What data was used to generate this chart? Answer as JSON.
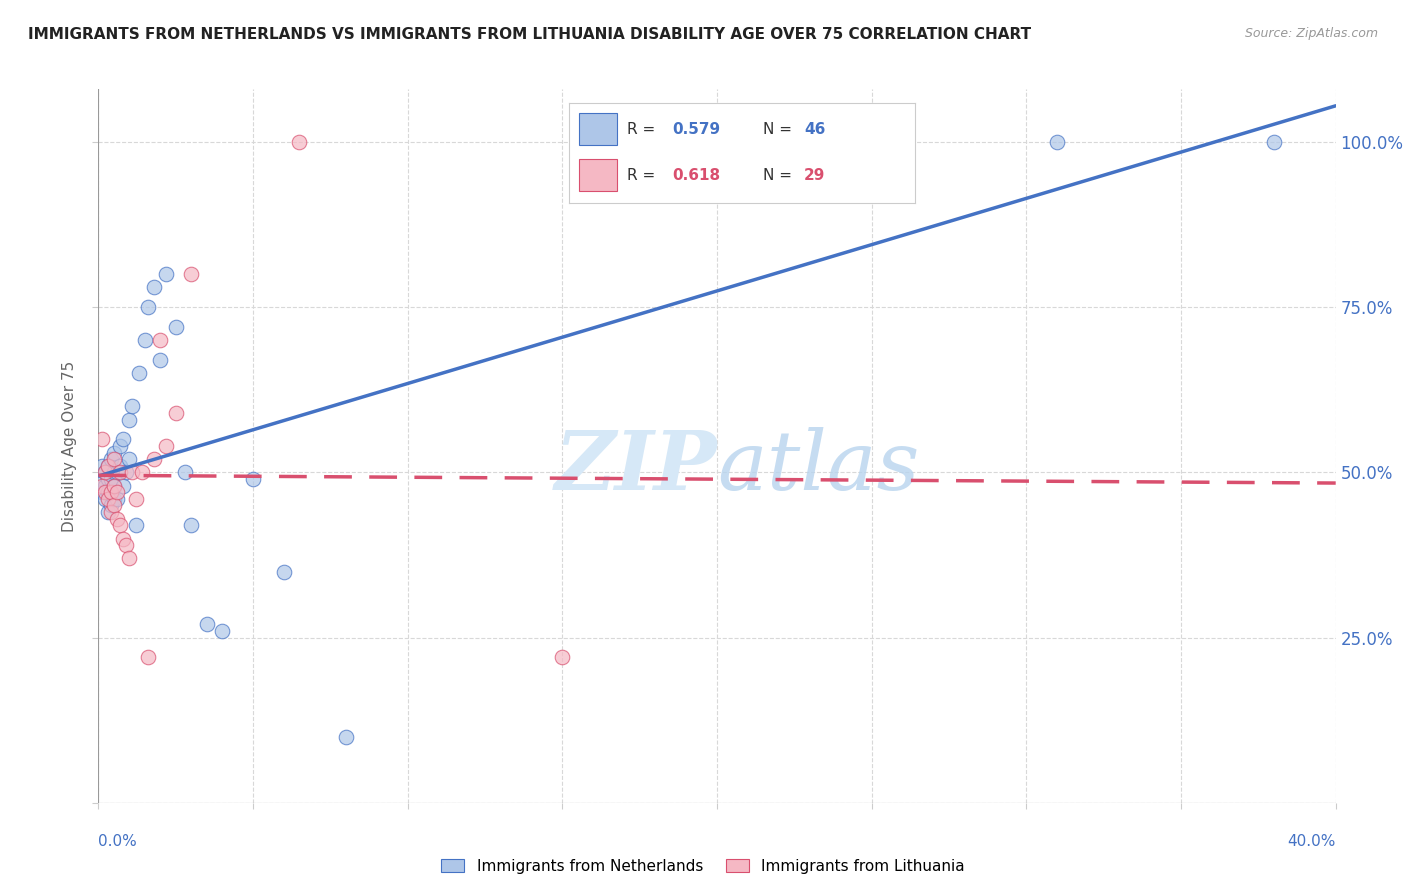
{
  "title": "IMMIGRANTS FROM NETHERLANDS VS IMMIGRANTS FROM LITHUANIA DISABILITY AGE OVER 75 CORRELATION CHART",
  "source": "Source: ZipAtlas.com",
  "ylabel": "Disability Age Over 75",
  "xlim": [
    0.0,
    0.4
  ],
  "ylim": [
    0.0,
    1.08
  ],
  "netherlands_R": 0.579,
  "netherlands_N": 46,
  "lithuania_R": 0.618,
  "lithuania_N": 29,
  "netherlands_color": "#aec6e8",
  "lithuania_color": "#f5b8c4",
  "netherlands_line_color": "#4472c4",
  "lithuania_line_color": "#d94f6e",
  "watermark_color": "#d6e8f7",
  "y_ticks": [
    0.0,
    0.25,
    0.5,
    0.75,
    1.0
  ],
  "y_labels": [
    "",
    "25.0%",
    "50.0%",
    "75.0%",
    "100.0%"
  ],
  "netherlands_x": [
    0.001,
    0.001,
    0.001,
    0.002,
    0.002,
    0.002,
    0.003,
    0.003,
    0.003,
    0.003,
    0.004,
    0.004,
    0.004,
    0.004,
    0.005,
    0.005,
    0.005,
    0.005,
    0.006,
    0.006,
    0.007,
    0.007,
    0.008,
    0.008,
    0.009,
    0.01,
    0.01,
    0.011,
    0.012,
    0.013,
    0.015,
    0.016,
    0.018,
    0.02,
    0.022,
    0.025,
    0.028,
    0.03,
    0.035,
    0.04,
    0.05,
    0.06,
    0.08,
    0.2,
    0.31,
    0.38
  ],
  "netherlands_y": [
    0.47,
    0.49,
    0.51,
    0.46,
    0.48,
    0.5,
    0.44,
    0.47,
    0.49,
    0.51,
    0.45,
    0.47,
    0.49,
    0.52,
    0.46,
    0.48,
    0.5,
    0.53,
    0.46,
    0.5,
    0.51,
    0.54,
    0.48,
    0.55,
    0.5,
    0.52,
    0.58,
    0.6,
    0.42,
    0.65,
    0.7,
    0.75,
    0.78,
    0.67,
    0.8,
    0.72,
    0.5,
    0.42,
    0.27,
    0.26,
    0.49,
    0.35,
    0.1,
    1.0,
    1.0,
    1.0
  ],
  "lithuania_x": [
    0.001,
    0.001,
    0.002,
    0.002,
    0.003,
    0.003,
    0.004,
    0.004,
    0.005,
    0.005,
    0.005,
    0.006,
    0.006,
    0.007,
    0.007,
    0.008,
    0.009,
    0.01,
    0.011,
    0.012,
    0.014,
    0.016,
    0.018,
    0.02,
    0.022,
    0.025,
    0.03,
    0.065,
    0.15
  ],
  "lithuania_y": [
    0.48,
    0.55,
    0.47,
    0.5,
    0.46,
    0.51,
    0.44,
    0.47,
    0.45,
    0.48,
    0.52,
    0.43,
    0.47,
    0.42,
    0.5,
    0.4,
    0.39,
    0.37,
    0.5,
    0.46,
    0.5,
    0.22,
    0.52,
    0.7,
    0.54,
    0.59,
    0.8,
    1.0,
    0.22
  ]
}
